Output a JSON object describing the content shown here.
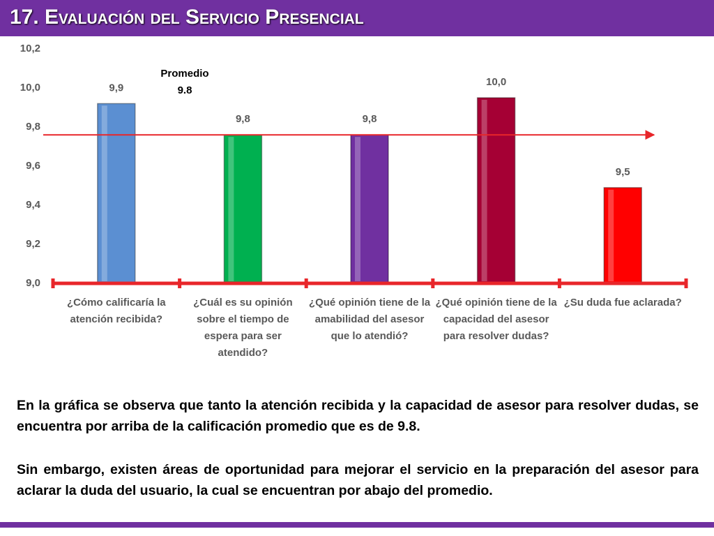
{
  "header": {
    "title": "17. Evaluación del Servicio Presencial"
  },
  "chart_data": {
    "type": "bar",
    "categories": [
      "¿Cómo calificaría la atención recibida?",
      "¿Cuál es su opinión sobre el tiempo de espera para ser atendido?",
      "¿Qué opinión tiene de la amabilidad del asesor que lo atendió?",
      "¿Qué opinión tiene de la capacidad del asesor para resolver dudas?",
      "¿Su duda fue aclarada?"
    ],
    "values": [
      9.92,
      9.76,
      9.76,
      9.95,
      9.49
    ],
    "value_labels": [
      "9,9",
      "9,8",
      "9,8",
      "10,0",
      "9,5"
    ],
    "colors": [
      "#5b8fd2",
      "#00b050",
      "#7030a0",
      "#a50034",
      "#ff0000"
    ],
    "ylim": [
      9.0,
      10.2
    ],
    "yticks": [
      {
        "value": 9.0,
        "label": "9,0"
      },
      {
        "value": 9.2,
        "label": "9,2"
      },
      {
        "value": 9.4,
        "label": "9,4"
      },
      {
        "value": 9.6,
        "label": "9,6"
      },
      {
        "value": 9.8,
        "label": "9,8"
      },
      {
        "value": 10.0,
        "label": "10,0"
      },
      {
        "value": 10.2,
        "label": "10,2"
      }
    ],
    "average_line": {
      "value": 9.76,
      "color": "#e8262a",
      "annotation": [
        "Promedio",
        "9.8"
      ]
    }
  },
  "body": {
    "paragraphs": [
      "En la gráfica se observa que tanto la atención recibida y la capacidad de asesor para resolver dudas, se encuentra por arriba de la calificación promedio que es de 9.8.",
      "Sin embargo, existen áreas de oportunidad para mejorar el servicio en la preparación del asesor para aclarar la duda del usuario, la cual se encuentran por abajo del promedio."
    ]
  }
}
